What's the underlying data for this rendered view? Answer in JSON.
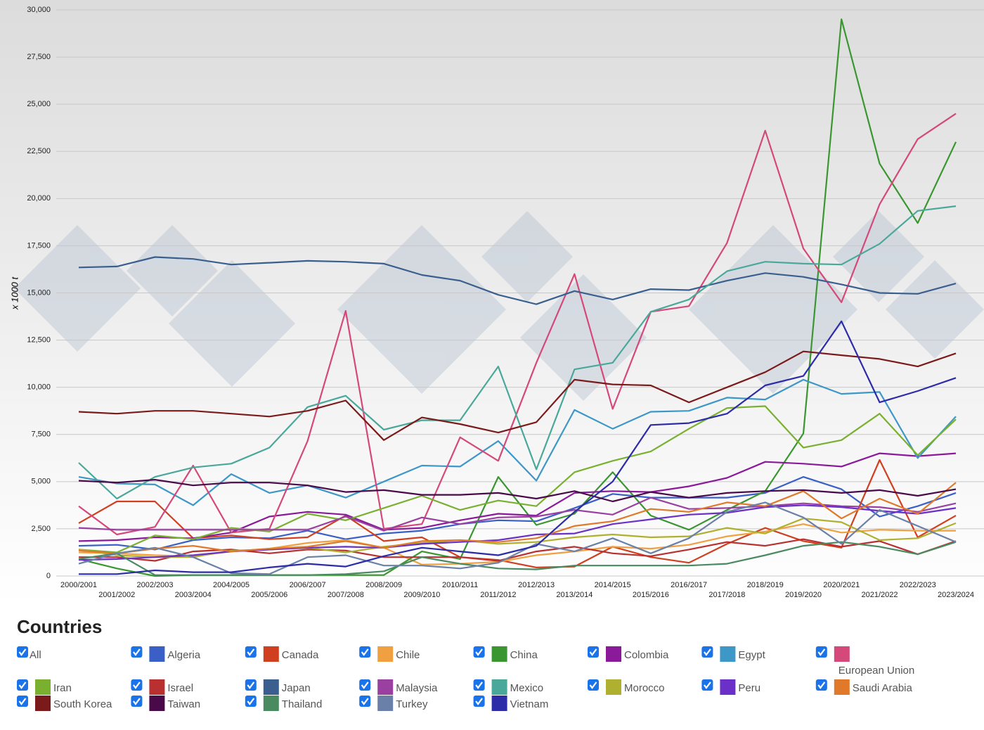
{
  "chart_data": {
    "type": "line",
    "y_label": "x 1000 t",
    "legend_title": "Countries",
    "legend_all": "All",
    "categories": [
      "2000/2001",
      "2001/2002",
      "2002/2003",
      "2003/2004",
      "2004/2005",
      "2005/2006",
      "2006/2007",
      "2007/2008",
      "2008/2009",
      "2009/2010",
      "2010/2011",
      "2011/2012",
      "2012/2013",
      "2013/2014",
      "2014/2015",
      "2015/2016",
      "2016/2017",
      "2017/2018",
      "2018/2019",
      "2019/2020",
      "2020/2021",
      "2021/2022",
      "2022/2023",
      "2023/2024"
    ],
    "ylim": [
      0,
      30000
    ],
    "yticks": [
      0,
      {
        "value": 2500,
        "label": "2,500"
      },
      {
        "value": 5000,
        "label": "5,000"
      },
      {
        "value": 7500,
        "label": "7,500"
      },
      {
        "value": 10000,
        "label": "10,000"
      },
      {
        "value": 12500,
        "label": "12,500"
      },
      {
        "value": 15000,
        "label": "15,000"
      },
      {
        "value": 17500,
        "label": "17,500"
      },
      {
        "value": 20000,
        "label": "20,000"
      },
      {
        "value": 22500,
        "label": "22,500"
      },
      {
        "value": 25000,
        "label": "25,000"
      },
      {
        "value": 27500,
        "label": "27,500"
      },
      {
        "value": 30000,
        "label": "30,000"
      }
    ],
    "grid": true,
    "series": [
      {
        "name": "Algeria",
        "color": "#3a60c8",
        "values": [
          1600,
          1650,
          1400,
          1900,
          2050,
          2000,
          2400,
          1950,
          2250,
          2400,
          2750,
          2950,
          2900,
          3600,
          4350,
          4150,
          4150,
          4150,
          4400,
          5250,
          4600,
          3150,
          3700,
          4400
        ]
      },
      {
        "name": "Canada",
        "color": "#d04020",
        "values": [
          2800,
          3950,
          3950,
          2000,
          2150,
          1950,
          2050,
          3200,
          1850,
          2050,
          1000,
          850,
          450,
          500,
          1550,
          1000,
          700,
          1700,
          2550,
          1850,
          1500,
          6150,
          2050,
          3200
        ]
      },
      {
        "name": "Chile",
        "color": "#f0a040",
        "values": [
          1250,
          1200,
          1100,
          1050,
          1300,
          1450,
          1750,
          1900,
          1500,
          600,
          650,
          750,
          1100,
          1300,
          1550,
          1450,
          1650,
          2100,
          2350,
          2750,
          2300,
          2450,
          2400,
          2400
        ]
      },
      {
        "name": "China",
        "color": "#3a9630",
        "values": [
          900,
          400,
          0,
          50,
          50,
          50,
          50,
          50,
          50,
          1300,
          900,
          5250,
          2700,
          3300,
          5500,
          3200,
          2450,
          3500,
          4500,
          7550,
          29500,
          21850,
          18700,
          23000
        ]
      },
      {
        "name": "Colombia",
        "color": "#8b1a9a",
        "values": [
          1850,
          1900,
          2050,
          2000,
          2300,
          3150,
          3400,
          3250,
          2450,
          2550,
          2950,
          3300,
          3200,
          4400,
          4500,
          4450,
          4750,
          5200,
          6050,
          5950,
          5800,
          6500,
          6350,
          6500
        ]
      },
      {
        "name": "Egypt",
        "color": "#3d97c7",
        "values": [
          5250,
          4900,
          4850,
          3750,
          5400,
          4400,
          4800,
          4150,
          5000,
          5850,
          5800,
          7150,
          5050,
          8800,
          7800,
          8700,
          8750,
          9450,
          9350,
          10400,
          9650,
          9750,
          6250,
          8450
        ]
      },
      {
        "name": "European Union",
        "color": "#d4487a",
        "values": [
          3700,
          2200,
          2600,
          5850,
          2300,
          2500,
          7150,
          14050,
          2500,
          2750,
          7350,
          6100,
          11300,
          16000,
          8850,
          14000,
          14300,
          17650,
          23600,
          17350,
          14500,
          19700,
          23150,
          24500
        ]
      },
      {
        "name": "Iran",
        "color": "#7ab030",
        "values": [
          1400,
          1250,
          2150,
          1950,
          2550,
          2350,
          3300,
          2950,
          3600,
          4250,
          3500,
          4000,
          3700,
          5500,
          6100,
          6600,
          7800,
          8900,
          9000,
          6800,
          7200,
          8600,
          6400,
          8300
        ]
      },
      {
        "name": "Israel",
        "color": "#b83030",
        "values": [
          1000,
          1000,
          800,
          1300,
          1400,
          1200,
          1400,
          1350,
          1000,
          1000,
          1000,
          800,
          1300,
          1550,
          1200,
          1050,
          1400,
          1800,
          1600,
          1950,
          1550,
          1850,
          1150,
          1850
        ]
      },
      {
        "name": "Japan",
        "color": "#3a5f8f",
        "values": [
          16350,
          16400,
          16900,
          16800,
          16500,
          16600,
          16700,
          16650,
          16550,
          15950,
          15650,
          14900,
          14400,
          15100,
          14650,
          15200,
          15150,
          15650,
          16050,
          15850,
          15450,
          15000,
          14950,
          15500
        ]
      },
      {
        "name": "Malaysia",
        "color": "#9a40a0",
        "values": [
          2550,
          2450,
          2450,
          2450,
          2450,
          2450,
          2450,
          3150,
          2400,
          3100,
          2750,
          3100,
          3150,
          3500,
          3250,
          4150,
          3550,
          3600,
          3700,
          3850,
          3700,
          3650,
          3400,
          3850
        ]
      },
      {
        "name": "Mexico",
        "color": "#4aa89a",
        "values": [
          6000,
          4100,
          5250,
          5750,
          5950,
          6800,
          8950,
          9550,
          7750,
          8250,
          8250,
          11100,
          5650,
          10950,
          11300,
          14000,
          14650,
          16150,
          16650,
          16550,
          16500,
          17600,
          19350,
          19600
        ]
      },
      {
        "name": "Morocco",
        "color": "#b0b030",
        "values": [
          1400,
          1100,
          1000,
          1000,
          1350,
          1400,
          1500,
          1250,
          1550,
          1750,
          1900,
          1700,
          1800,
          2050,
          2200,
          2050,
          2100,
          2550,
          2250,
          3050,
          2850,
          1900,
          2000,
          2800
        ]
      },
      {
        "name": "Peru",
        "color": "#6a30c8",
        "values": [
          850,
          900,
          1000,
          1100,
          1300,
          1400,
          1500,
          1550,
          1500,
          1700,
          1800,
          1900,
          2200,
          2250,
          2750,
          3000,
          3250,
          3350,
          3650,
          3750,
          3650,
          3450,
          3300,
          3600
        ]
      },
      {
        "name": "Saudi Arabia",
        "color": "#e07a2a",
        "values": [
          1350,
          1200,
          1450,
          1600,
          1300,
          1450,
          1550,
          1850,
          1500,
          1850,
          1900,
          1800,
          2000,
          2650,
          2900,
          3550,
          3400,
          3900,
          3700,
          4500,
          3050,
          4100,
          3300,
          4950
        ]
      },
      {
        "name": "South Korea",
        "color": "#7b1a1a",
        "values": [
          8700,
          8600,
          8750,
          8750,
          8600,
          8450,
          8750,
          9300,
          7200,
          8400,
          8050,
          7600,
          8150,
          10400,
          10150,
          10100,
          9200,
          10000,
          10800,
          11900,
          11700,
          11500,
          11100,
          11800
        ]
      },
      {
        "name": "Taiwan",
        "color": "#4a0a4a",
        "values": [
          5050,
          4950,
          5100,
          4800,
          4950,
          4950,
          4800,
          4450,
          4550,
          4300,
          4300,
          4400,
          4100,
          4500,
          3950,
          4450,
          4150,
          4400,
          4500,
          4550,
          4400,
          4550,
          4250,
          4600
        ]
      },
      {
        "name": "Thailand",
        "color": "#4a8a60",
        "values": [
          900,
          1200,
          50,
          50,
          50,
          50,
          50,
          100,
          250,
          1000,
          650,
          400,
          350,
          550,
          550,
          550,
          550,
          650,
          1100,
          1600,
          1800,
          1550,
          1150,
          1800
        ]
      },
      {
        "name": "Turkey",
        "color": "#6a80a8",
        "values": [
          650,
          1200,
          1500,
          1000,
          150,
          100,
          1000,
          1100,
          550,
          550,
          400,
          700,
          1700,
          1300,
          2000,
          1200,
          2000,
          3400,
          3900,
          3100,
          1700,
          3500,
          2650,
          1800
        ]
      },
      {
        "name": "Vietnam",
        "color": "#2c2ca8",
        "values": [
          100,
          100,
          300,
          200,
          200,
          450,
          650,
          500,
          1050,
          1500,
          1300,
          1100,
          1600,
          3400,
          5000,
          8000,
          8100,
          8600,
          10100,
          10600,
          13500,
          9200,
          9800,
          10500
        ]
      }
    ]
  }
}
